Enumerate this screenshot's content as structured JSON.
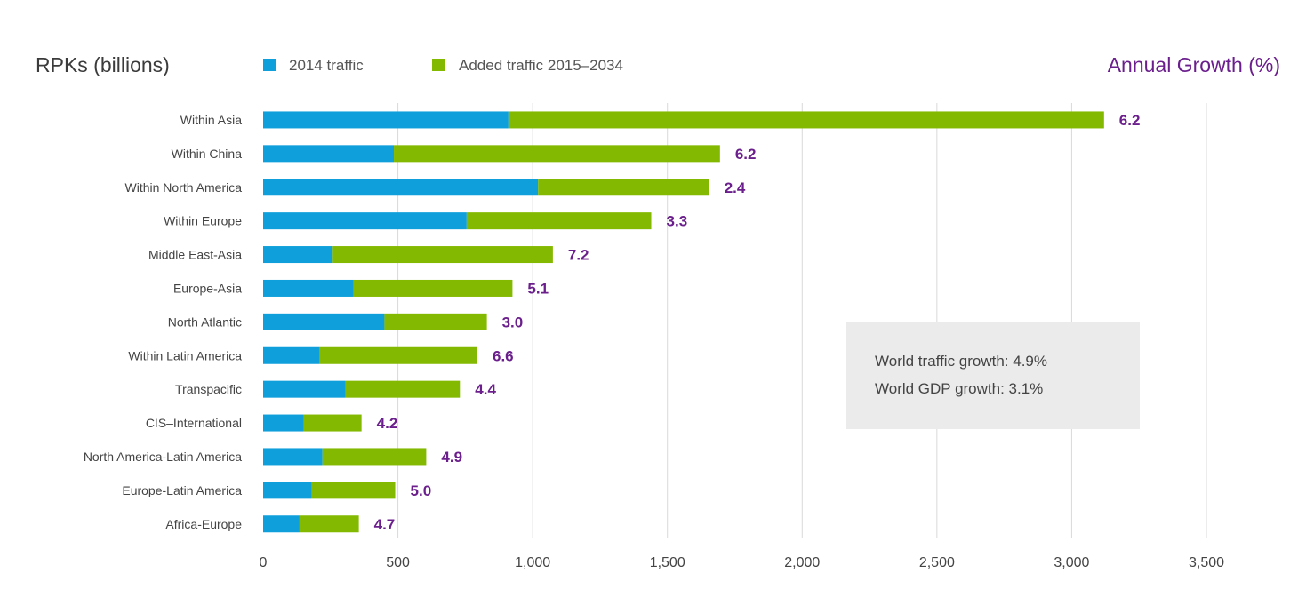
{
  "chart_data": {
    "type": "bar",
    "orientation": "horizontal",
    "stacked": true,
    "ylabel": "RPKs (billions)",
    "secondary_title": "Annual Growth (%)",
    "categories": [
      "Within Asia",
      "Within China",
      "Within North America",
      "Within Europe",
      "Middle East-Asia",
      "Europe-Asia",
      "North Atlantic",
      "Within Latin America",
      "Transpacific",
      "CIS–International",
      "North America-Latin America",
      "Europe-Latin America",
      "Africa-Europe"
    ],
    "series": [
      {
        "name": "2014 traffic",
        "color": "#0f9fdb",
        "values": [
          910,
          485,
          1020,
          755,
          255,
          335,
          450,
          210,
          305,
          150,
          220,
          180,
          135
        ]
      },
      {
        "name": "Added traffic 2015–2034",
        "color": "#83b900",
        "values": [
          2210,
          1210,
          635,
          685,
          820,
          590,
          380,
          585,
          425,
          215,
          385,
          310,
          220
        ]
      }
    ],
    "annual_growth": [
      "6.2",
      "6.2",
      "2.4",
      "3.3",
      "7.2",
      "5.1",
      "3.0",
      "6.6",
      "4.4",
      "4.2",
      "4.9",
      "5.0",
      "4.7"
    ],
    "xlim": [
      0,
      3500
    ],
    "xticks": [
      0,
      500,
      1000,
      1500,
      2000,
      2500,
      3000,
      3500
    ],
    "xtick_labels": [
      "0",
      "500",
      "1,000",
      "1,500",
      "2,000",
      "2,500",
      "3,000",
      "3,500"
    ],
    "grid": "vertical",
    "legend_position": "top-left",
    "growth_color": "#6b1f8c",
    "gridline_color": "#d9d9d9",
    "note": {
      "lines": [
        "World traffic growth: 4.9%",
        "World GDP growth: 3.1%"
      ],
      "background": "#ebebeb"
    }
  }
}
